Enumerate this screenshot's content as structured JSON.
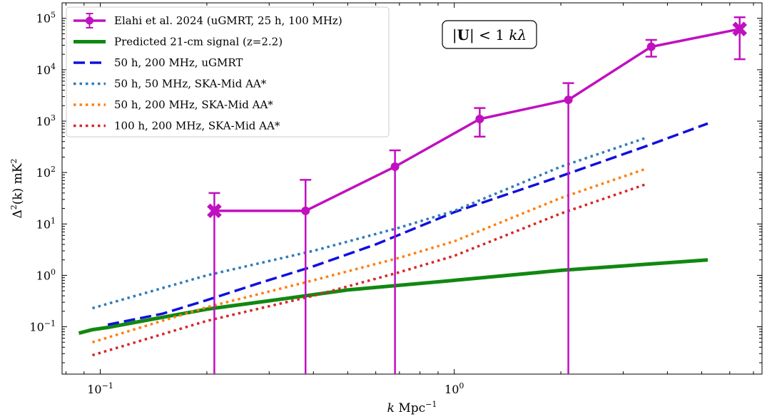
{
  "chart_data": {
    "type": "line",
    "xscale": "log",
    "yscale": "log",
    "xlim": [
      0.078,
      7.4
    ],
    "ylim": [
      0.012,
      200000
    ],
    "xlabel": "k Mpc^-1",
    "xlabel_parts": {
      "var": "k",
      "unit": " Mpc",
      "exp": "−1"
    },
    "ylabel_parts": {
      "a": "Δ",
      "sup": "2",
      "b": "(k) mK",
      "sup2": "2"
    },
    "x_ticks": [
      {
        "value": 0.1,
        "base": "10",
        "exp": "−1"
      },
      {
        "value": 1,
        "base": "10",
        "exp": "0"
      }
    ],
    "y_ticks": [
      {
        "value": 0.1,
        "base": "10",
        "exp": "−1"
      },
      {
        "value": 1,
        "base": "10",
        "exp": "0"
      },
      {
        "value": 10,
        "base": "10",
        "exp": "1"
      },
      {
        "value": 100,
        "base": "10",
        "exp": "2"
      },
      {
        "value": 1000,
        "base": "10",
        "exp": "3"
      },
      {
        "value": 10000,
        "base": "10",
        "exp": "4"
      },
      {
        "value": 100000,
        "base": "10",
        "exp": "5"
      }
    ],
    "annotation": {
      "text": "|U| < 1 kλ",
      "bold": "U",
      "italic": [
        "k",
        "λ"
      ]
    },
    "legend_position": "upper-left",
    "series": [
      {
        "name": "Elahi et al. 2024 (uGMRT, 25 h, 100 MHz)",
        "color": "#c010c0",
        "style": "solid-marker",
        "points": [
          {
            "x": 0.21,
            "y": 18,
            "hi": 40,
            "lo": 0.012,
            "marker": "x"
          },
          {
            "x": 0.38,
            "y": 18,
            "hi": 72,
            "lo": 0.012,
            "marker": "o"
          },
          {
            "x": 0.68,
            "y": 130,
            "hi": 270,
            "lo": 0.012,
            "marker": "o"
          },
          {
            "x": 1.18,
            "y": 1100,
            "hi": 1800,
            "lo": 500,
            "marker": "o"
          },
          {
            "x": 2.1,
            "y": 2600,
            "hi": 5500,
            "lo": 0.012,
            "marker": "o"
          },
          {
            "x": 3.6,
            "y": 28000,
            "hi": 38000,
            "lo": 18000,
            "marker": "o"
          },
          {
            "x": 6.4,
            "y": 62000,
            "hi": 105000,
            "lo": 16000,
            "marker": "x"
          }
        ]
      },
      {
        "name": "Predicted 21-cm signal (z=2.2)",
        "color": "#118811",
        "style": "thick-solid",
        "x": [
          0.087,
          0.095,
          0.105,
          0.14,
          0.2,
          0.3,
          0.5,
          1.0,
          2.0,
          5.2
        ],
        "y": [
          0.075,
          0.088,
          0.097,
          0.14,
          0.22,
          0.32,
          0.52,
          0.8,
          1.25,
          2.0
        ]
      },
      {
        "name": "50 h, 200 MHz, uGMRT",
        "color": "#1010dd",
        "style": "dashed",
        "x": [
          0.105,
          0.15,
          0.2,
          0.28,
          0.4,
          0.6,
          1.0,
          2.0,
          3.5,
          5.2
        ],
        "y": [
          0.11,
          0.18,
          0.33,
          0.7,
          1.5,
          4.0,
          17,
          85,
          330,
          900
        ]
      },
      {
        "name": "50 h, 50 MHz, SKA-Mid AA*",
        "color": "#2f7bb8",
        "style": "dotted",
        "x": [
          0.095,
          0.2,
          0.4,
          0.7,
          1.0,
          2.0,
          3.5
        ],
        "y": [
          0.23,
          1.0,
          3.0,
          8.5,
          18,
          130,
          480
        ]
      },
      {
        "name": "50 h, 200 MHz, SKA-Mid AA*",
        "color": "#ff7f0e",
        "style": "dotted",
        "x": [
          0.095,
          0.2,
          0.4,
          0.7,
          1.0,
          2.0,
          3.5
        ],
        "y": [
          0.05,
          0.24,
          0.8,
          2.2,
          4.6,
          32,
          120
        ]
      },
      {
        "name": "100 h, 200 MHz, SKA-Mid AA*",
        "color": "#d62728",
        "style": "dotted",
        "x": [
          0.095,
          0.2,
          0.4,
          0.7,
          1.0,
          2.0,
          3.5
        ],
        "y": [
          0.028,
          0.13,
          0.4,
          1.15,
          2.4,
          16,
          60
        ]
      }
    ]
  }
}
